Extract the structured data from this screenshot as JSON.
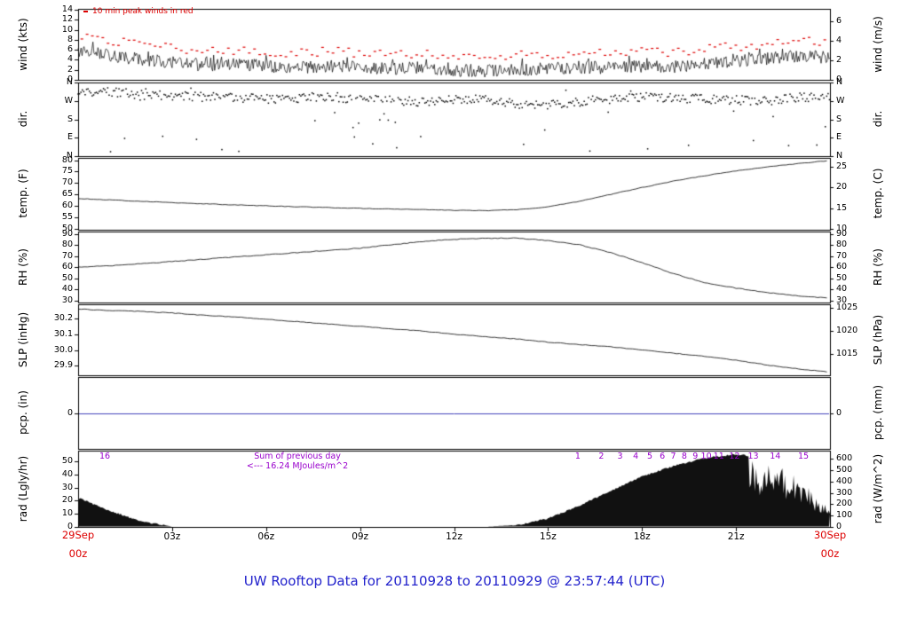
{
  "title": {
    "text": "UW Rooftop Data for 20110928  to  20110929 @ 23:57:44  (UTC)"
  },
  "colors": {
    "axis": "#000000",
    "trace": "#000000",
    "red": "#dd0000",
    "purple": "#9900cc",
    "blue": "#2222cc",
    "pcp_line": "#4444bb"
  },
  "xaxis": {
    "tick_hours": [
      3,
      6,
      9,
      12,
      15,
      18,
      21
    ],
    "tick_labels": [
      "03z",
      "06z",
      "09z",
      "12z",
      "15z",
      "18z",
      "21z"
    ],
    "left_date": [
      "29Sep",
      "00z"
    ],
    "right_date": [
      "30Sep",
      "00z"
    ]
  },
  "chart_data": {
    "type": "line",
    "time_range_hours": [
      0,
      24
    ],
    "panels": [
      {
        "id": "wind",
        "ylabel_left": "wind (kts)",
        "ylabel_right": "wind (m/s)",
        "draw": "wind",
        "yrange": [
          0,
          14.2
        ],
        "yticks_left": {
          "values": [
            0,
            2,
            4,
            6,
            8,
            10,
            12,
            14
          ],
          "labels": [
            "0",
            "2",
            "4",
            "6",
            "8",
            "10",
            "12",
            "14"
          ]
        },
        "yticks_right": {
          "values": [
            0,
            2,
            4,
            6
          ],
          "labels": [
            "0",
            "2",
            "4",
            "6"
          ]
        },
        "right_map": {
          "mul": 1.9438,
          "add": 0
        },
        "legend": "10 min peak winds in red",
        "avg_kts": [
          5.5,
          5.0,
          4.0,
          3.5,
          3.0,
          3.0,
          2.8,
          2.5,
          2.8,
          2.5,
          2.2,
          2.5,
          2.0,
          1.8,
          2.0,
          2.2,
          2.5,
          2.5,
          2.8,
          2.5,
          3.2,
          3.8,
          4.2,
          4.8,
          4.5
        ],
        "noise": 1.3,
        "peak_extra": 2.0
      },
      {
        "id": "dir",
        "ylabel_left": "dir.",
        "ylabel_right": "dir.",
        "draw": "scatter",
        "yrange": [
          0,
          360
        ],
        "yticks_left": {
          "values": [
            360,
            270,
            180,
            90,
            0
          ],
          "labels": [
            "N",
            "W",
            "S",
            "E",
            "N"
          ]
        },
        "yticks_right": {
          "values": [
            360,
            270,
            180,
            90,
            0
          ],
          "labels": [
            "N",
            "W",
            "S",
            "E",
            "N"
          ]
        },
        "right_map": {
          "mul": 1,
          "add": 0
        },
        "base_deg": [
          305,
          315,
          300,
          295,
          290,
          285,
          280,
          285,
          290,
          280,
          275,
          265,
          275,
          280,
          255,
          250,
          265,
          280,
          290,
          285,
          280,
          275,
          270,
          285,
          295
        ],
        "jitter": 45,
        "outlier_rate": 0.05
      },
      {
        "id": "temp",
        "ylabel_left": "temp. (F)",
        "ylabel_right": "temp. (C)",
        "draw": "line",
        "yrange": [
          49.5,
          81
        ],
        "yticks_left": {
          "values": [
            50,
            55,
            60,
            65,
            70,
            75,
            80
          ],
          "labels": [
            "50",
            "55",
            "60",
            "65",
            "70",
            "75",
            "80"
          ]
        },
        "yticks_right": {
          "values": [
            10,
            15,
            20,
            25
          ],
          "labels": [
            "10",
            "15",
            "20",
            "25"
          ]
        },
        "right_map": {
          "mul": 1.8,
          "add": 32
        },
        "values": [
          63.2,
          62.6,
          62.0,
          61.4,
          60.9,
          60.4,
          60.0,
          59.6,
          59.2,
          58.9,
          58.6,
          58.3,
          58.0,
          57.9,
          58.3,
          59.6,
          62.0,
          65.0,
          68.0,
          70.8,
          73.2,
          75.3,
          77.0,
          78.6,
          79.8
        ],
        "jitter": 0.25
      },
      {
        "id": "rh",
        "ylabel_left": "RH (%)",
        "ylabel_right": "RH (%)",
        "draw": "line",
        "yrange": [
          28,
          92
        ],
        "yticks_left": {
          "values": [
            30,
            40,
            50,
            60,
            70,
            80,
            90
          ],
          "labels": [
            "30",
            "40",
            "50",
            "60",
            "70",
            "80",
            "90"
          ]
        },
        "yticks_right": {
          "values": [
            30,
            40,
            50,
            60,
            70,
            80,
            90
          ],
          "labels": [
            "30",
            "40",
            "50",
            "60",
            "70",
            "80",
            "90"
          ]
        },
        "right_map": {
          "mul": 1,
          "add": 0
        },
        "values": [
          60,
          61,
          63,
          65,
          67,
          69,
          71,
          73,
          75,
          77,
          80,
          83,
          85,
          86,
          86,
          84,
          80,
          73,
          64,
          54,
          46,
          41,
          37,
          34,
          32
        ],
        "jitter": 0.7
      },
      {
        "id": "slp",
        "ylabel_left": "SLP (inHg)",
        "ylabel_right": "SLP (hPa)",
        "draw": "line",
        "yrange": [
          29.84,
          30.29
        ],
        "yticks_left": {
          "values": [
            29.9,
            30.0,
            30.1,
            30.2
          ],
          "labels": [
            "29.9",
            "30.0",
            "30.1",
            "30.2"
          ]
        },
        "yticks_right": {
          "values": [
            1015,
            1020,
            1025
          ],
          "labels": [
            "1015",
            "1020",
            "1025"
          ]
        },
        "right_map": {
          "mul": 0.02953,
          "add": 0
        },
        "values": [
          30.26,
          30.25,
          30.245,
          30.235,
          30.22,
          30.21,
          30.195,
          30.18,
          30.165,
          30.15,
          30.135,
          30.12,
          30.1,
          30.085,
          30.07,
          30.05,
          30.035,
          30.02,
          30.0,
          29.98,
          29.96,
          29.935,
          29.905,
          29.88,
          29.86
        ],
        "jitter": 0.004
      },
      {
        "id": "pcp",
        "ylabel_left": "pcp. (in)",
        "ylabel_right": "pcp. (mm)",
        "draw": "flat",
        "yrange": [
          -1,
          1
        ],
        "yticks_left": {
          "values": [
            0
          ],
          "labels": [
            "0"
          ]
        },
        "yticks_right": {
          "values": [
            0
          ],
          "labels": [
            "0"
          ]
        },
        "right_map": {
          "mul": 1,
          "add": 0
        },
        "flat_value": 0
      },
      {
        "id": "rad",
        "ylabel_left": "rad (Lgly/hr)",
        "ylabel_right": "rad (W/m^2)",
        "draw": "fill",
        "yrange": [
          0,
          58
        ],
        "yticks_left": {
          "values": [
            0,
            10,
            20,
            30,
            40,
            50
          ],
          "labels": [
            "0",
            "10",
            "20",
            "30",
            "40",
            "50"
          ]
        },
        "yticks_right": {
          "values": [
            0,
            100,
            200,
            300,
            400,
            500,
            600
          ],
          "labels": [
            "0",
            "100",
            "200",
            "300",
            "400",
            "500",
            "600"
          ]
        },
        "right_map": {
          "mul": 0.08604,
          "add": 0
        },
        "values": [
          22,
          12,
          4,
          0,
          0,
          0,
          0,
          0,
          0,
          0,
          0,
          0,
          0,
          0,
          1,
          6,
          16,
          27,
          38,
          46,
          52,
          55,
          52,
          38,
          14
        ],
        "annotations": {
          "sum_line1": "Sum of previous day",
          "sum_line2": "<--- 16.24 MJoules/m^2",
          "sum_hour": 7.0,
          "hour_labels": [
            {
              "text": "16",
              "hour": 0.85
            },
            {
              "text": "1",
              "hour": 15.95
            },
            {
              "text": "2",
              "hour": 16.7
            },
            {
              "text": "3",
              "hour": 17.3
            },
            {
              "text": "4",
              "hour": 17.8
            },
            {
              "text": "5",
              "hour": 18.25
            },
            {
              "text": "6",
              "hour": 18.65
            },
            {
              "text": "7",
              "hour": 19.0
            },
            {
              "text": "8",
              "hour": 19.35
            },
            {
              "text": "9",
              "hour": 19.7
            },
            {
              "text": "10",
              "hour": 20.05
            },
            {
              "text": "11",
              "hour": 20.45
            },
            {
              "text": "12",
              "hour": 20.95
            },
            {
              "text": "13",
              "hour": 21.55
            },
            {
              "text": "14",
              "hour": 22.25
            },
            {
              "text": "15",
              "hour": 23.15
            }
          ]
        }
      }
    ]
  }
}
